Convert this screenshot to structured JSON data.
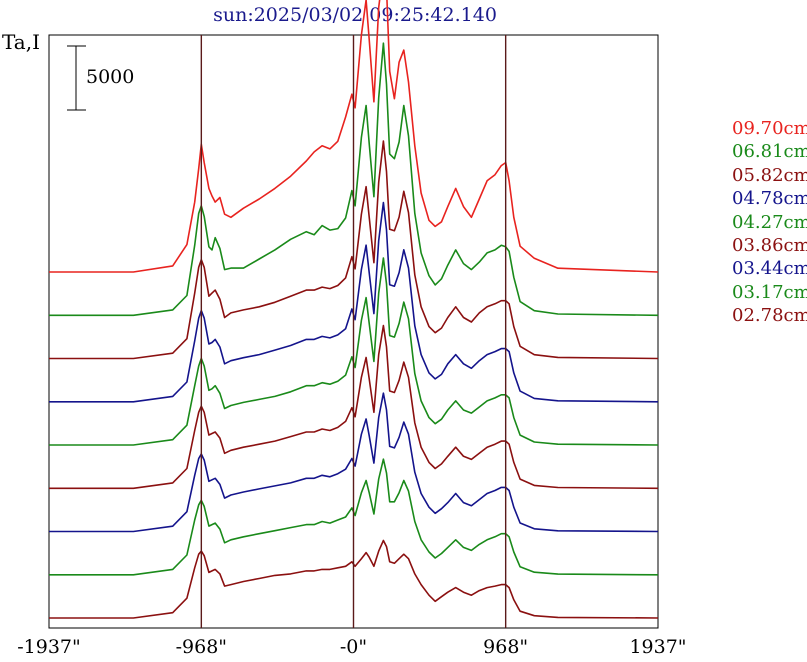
{
  "title": "sun:2025/03/02 09:25:42.140",
  "ylabel": "Ta,I",
  "scale_bar_label": "5000",
  "colors": {
    "red": "#e8231f",
    "green": "#1a8a1a",
    "darkred": "#8b1010",
    "blue": "#14148c",
    "vline": "#5a1a1a"
  },
  "chart_data": {
    "type": "line",
    "title": "sun:2025/03/02 09:25:42.140",
    "ylabel": "Ta,I",
    "xlim": [
      -1937,
      1937
    ],
    "x_ticks": [
      {
        "value": -1937,
        "label": "-1937\""
      },
      {
        "value": -968,
        "label": "-968\""
      },
      {
        "value": 0,
        "label": "-0\""
      },
      {
        "value": 968,
        "label": "968\""
      },
      {
        "value": 1937,
        "label": "1937\""
      }
    ],
    "vertical_lines": [
      -968,
      0,
      968
    ],
    "scale_bar": 5000,
    "x": [
      -1937,
      -1400,
      -1150,
      -1060,
      -1010,
      -985,
      -968,
      -950,
      -920,
      -900,
      -880,
      -850,
      -820,
      -780,
      -700,
      -600,
      -500,
      -400,
      -300,
      -250,
      -200,
      -150,
      -100,
      -50,
      -10,
      10,
      50,
      80,
      100,
      130,
      160,
      190,
      210,
      230,
      260,
      290,
      320,
      350,
      390,
      430,
      480,
      520,
      560,
      600,
      650,
      700,
      750,
      800,
      850,
      900,
      940,
      968,
      990,
      1020,
      1060,
      1150,
      1300,
      1937
    ],
    "series": [
      {
        "name": "09.70cm",
        "color": "#e8231f",
        "offset": 0,
        "values": [
          0,
          0,
          400,
          1800,
          4600,
          6800,
          8400,
          7200,
          5500,
          5000,
          4600,
          4900,
          3800,
          3600,
          4200,
          4800,
          5500,
          6300,
          7300,
          7900,
          8300,
          8100,
          8600,
          10200,
          11700,
          10800,
          15600,
          17900,
          15300,
          11200,
          17400,
          19900,
          18700,
          13200,
          11400,
          13800,
          14600,
          12500,
          8300,
          5200,
          3400,
          3000,
          3300,
          4300,
          5500,
          4300,
          3600,
          4800,
          6000,
          6400,
          7000,
          7200,
          6000,
          3600,
          1700,
          900,
          250,
          0
        ]
      },
      {
        "name": "06.81cm",
        "color": "#1a8a1a",
        "offset": 0,
        "values": [
          0,
          0,
          350,
          1300,
          4600,
          6700,
          7200,
          6500,
          4500,
          4300,
          5100,
          4400,
          3000,
          3100,
          3100,
          3700,
          4300,
          5000,
          5500,
          5300,
          5900,
          5600,
          5700,
          6400,
          8200,
          7200,
          11700,
          13800,
          11300,
          7800,
          14300,
          17900,
          15200,
          10600,
          10300,
          11400,
          13800,
          11800,
          6700,
          4100,
          2600,
          2000,
          2400,
          3300,
          4300,
          3400,
          3000,
          3500,
          4100,
          4300,
          4600,
          4500,
          4200,
          2500,
          900,
          300,
          80,
          0
        ]
      },
      {
        "name": "05.82cm",
        "color": "#8b1010",
        "offset": 0,
        "values": [
          0,
          0,
          350,
          1300,
          4300,
          6000,
          6500,
          6000,
          4100,
          4300,
          4500,
          3900,
          2700,
          3000,
          3200,
          3400,
          3700,
          4100,
          4500,
          4500,
          4700,
          4600,
          4800,
          5300,
          6700,
          5900,
          9500,
          11300,
          9300,
          6300,
          11600,
          14300,
          12300,
          8500,
          8400,
          9300,
          11000,
          9600,
          5500,
          3400,
          2100,
          1700,
          2000,
          2700,
          3400,
          2700,
          2400,
          3000,
          3400,
          3600,
          3800,
          3800,
          3600,
          2100,
          800,
          250,
          70,
          0
        ]
      },
      {
        "name": "04.78cm",
        "color": "#14148c",
        "offset": 0,
        "values": [
          0,
          0,
          350,
          1300,
          4000,
          5500,
          6000,
          5500,
          3800,
          3900,
          4100,
          3600,
          2500,
          2700,
          2900,
          3100,
          3400,
          3700,
          4100,
          4100,
          4300,
          4200,
          4400,
          4800,
          6100,
          5400,
          8700,
          10300,
          8500,
          5800,
          10600,
          13100,
          11300,
          7700,
          7600,
          8500,
          10000,
          8800,
          5000,
          3100,
          1900,
          1500,
          1800,
          2500,
          3100,
          2500,
          2200,
          2700,
          3100,
          3300,
          3500,
          3500,
          3300,
          1900,
          700,
          220,
          60,
          0
        ]
      },
      {
        "name": "04.27cm",
        "color": "#1a8a1a",
        "offset": 0,
        "values": [
          0,
          0,
          350,
          1300,
          3900,
          5200,
          5700,
          5200,
          3600,
          3700,
          3900,
          3400,
          2400,
          2600,
          2800,
          3000,
          3200,
          3500,
          3900,
          3900,
          4100,
          4000,
          4200,
          4600,
          5800,
          5100,
          8200,
          9700,
          8000,
          5500,
          10000,
          12300,
          10600,
          7200,
          7100,
          8000,
          9400,
          8300,
          4700,
          2900,
          1800,
          1400,
          1700,
          2300,
          2900,
          2300,
          2100,
          2500,
          2900,
          3100,
          3300,
          3300,
          3100,
          1800,
          650,
          200,
          55,
          0
        ]
      },
      {
        "name": "03.86cm",
        "color": "#8b1010",
        "offset": 0,
        "values": [
          0,
          0,
          350,
          1300,
          3800,
          5000,
          5400,
          5000,
          3500,
          3600,
          3700,
          3300,
          2300,
          2500,
          2700,
          2900,
          3100,
          3400,
          3700,
          3700,
          3900,
          3800,
          4000,
          4400,
          5300,
          4700,
          7300,
          8600,
          7200,
          5000,
          8800,
          10700,
          9300,
          6400,
          6300,
          7100,
          8300,
          7300,
          4300,
          2700,
          1700,
          1300,
          1600,
          2100,
          2700,
          2100,
          1900,
          2300,
          2700,
          2900,
          3100,
          3100,
          2900,
          1700,
          600,
          190,
          50,
          0
        ]
      },
      {
        "name": "03.44cm",
        "color": "#14148c",
        "offset": 0,
        "values": [
          0,
          0,
          350,
          1300,
          3700,
          4800,
          5100,
          4700,
          3300,
          3400,
          3500,
          3100,
          2200,
          2400,
          2600,
          2800,
          3000,
          3200,
          3500,
          3500,
          3700,
          3600,
          3800,
          4100,
          4800,
          4300,
          6400,
          7400,
          6300,
          4500,
          7500,
          9100,
          8000,
          5600,
          5500,
          6200,
          7200,
          6400,
          3900,
          2500,
          1600,
          1200,
          1500,
          1900,
          2500,
          1900,
          1700,
          2100,
          2500,
          2700,
          2900,
          2900,
          2700,
          1600,
          560,
          180,
          45,
          0
        ]
      },
      {
        "name": "03.17cm",
        "color": "#1a8a1a",
        "offset": 0,
        "values": [
          0,
          0,
          350,
          1300,
          3600,
          4600,
          4900,
          4500,
          3200,
          3300,
          3400,
          3000,
          2100,
          2300,
          2500,
          2700,
          2900,
          3100,
          3300,
          3300,
          3500,
          3400,
          3600,
          3800,
          4400,
          3900,
          5400,
          6200,
          5400,
          4000,
          6300,
          7600,
          6700,
          4800,
          4800,
          5400,
          6200,
          5500,
          3500,
          2300,
          1500,
          1100,
          1400,
          1800,
          2300,
          1800,
          1600,
          2000,
          2300,
          2500,
          2700,
          2700,
          2500,
          1500,
          520,
          170,
          40,
          0
        ]
      },
      {
        "name": "02.78cm",
        "color": "#8b1010",
        "offset": 0,
        "values": [
          0,
          0,
          350,
          1300,
          3300,
          4200,
          4400,
          4100,
          3000,
          3100,
          3200,
          2900,
          2100,
          2200,
          2400,
          2600,
          2800,
          2900,
          3100,
          3100,
          3200,
          3200,
          3300,
          3400,
          3700,
          3400,
          3900,
          4300,
          4000,
          3400,
          4400,
          5100,
          4700,
          3700,
          3600,
          3900,
          4200,
          3900,
          2900,
          2200,
          1500,
          1100,
          1400,
          1700,
          2000,
          1700,
          1500,
          1800,
          2000,
          2100,
          2200,
          2200,
          2000,
          1200,
          450,
          150,
          40,
          0
        ]
      }
    ]
  }
}
